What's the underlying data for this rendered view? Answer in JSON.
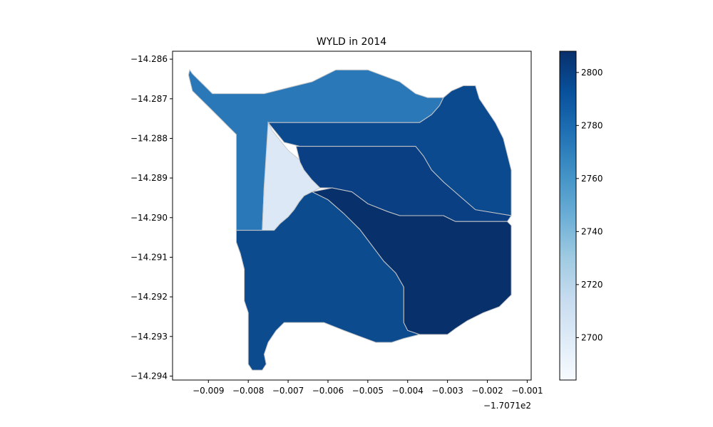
{
  "chart_data": {
    "type": "heatmap",
    "title": "WYLD in 2014",
    "xlabel": "",
    "ylabel": "",
    "x_offset_text": "−1.7071e2",
    "xlim": [
      -0.0099,
      -0.0009
    ],
    "ylim": [
      -14.2941,
      -14.2858
    ],
    "x_ticks": [
      -0.009,
      -0.008,
      -0.007,
      -0.006,
      -0.005,
      -0.004,
      -0.003,
      -0.002,
      -0.001
    ],
    "x_tick_labels": [
      "−0.009",
      "−0.008",
      "−0.007",
      "−0.006",
      "−0.005",
      "−0.004",
      "−0.003",
      "−0.002",
      "−0.001"
    ],
    "y_ticks": [
      -14.286,
      -14.287,
      -14.288,
      -14.289,
      -14.29,
      -14.291,
      -14.292,
      -14.293,
      -14.294
    ],
    "y_tick_labels": [
      "−14.286",
      "−14.287",
      "−14.288",
      "−14.289",
      "−14.290",
      "−14.291",
      "−14.292",
      "−14.293",
      "−14.294"
    ],
    "colorbar": {
      "colormap": "Blues",
      "range": [
        2684,
        2808
      ],
      "ticks": [
        2700,
        2720,
        2740,
        2760,
        2780,
        2800
      ],
      "tick_labels": [
        "2700",
        "2720",
        "2740",
        "2760",
        "2780",
        "2800"
      ]
    },
    "regions": [
      {
        "value": 2771,
        "color": "#2a78b8",
        "points": [
          [
            -0.00947,
            -14.28627
          ],
          [
            -0.0094,
            -14.28637
          ],
          [
            -0.0093,
            -14.28647
          ],
          [
            -0.0092,
            -14.28657
          ],
          [
            -0.0091,
            -14.28667
          ],
          [
            -0.009,
            -14.28677
          ],
          [
            -0.0089,
            -14.28687
          ],
          [
            -0.0076,
            -14.28687
          ],
          [
            -0.0072,
            -14.28677
          ],
          [
            -0.0068,
            -14.28667
          ],
          [
            -0.0064,
            -14.28657
          ],
          [
            -0.0061,
            -14.28642
          ],
          [
            -0.0058,
            -14.28627
          ],
          [
            -0.005,
            -14.28627
          ],
          [
            -0.0046,
            -14.28642
          ],
          [
            -0.0042,
            -14.28657
          ],
          [
            -0.004,
            -14.28672
          ],
          [
            -0.0038,
            -14.28687
          ],
          [
            -0.0035,
            -14.28697
          ],
          [
            -0.0031,
            -14.28697
          ],
          [
            -0.0032,
            -14.28717
          ],
          [
            -0.0034,
            -14.2874
          ],
          [
            -0.0037,
            -14.2876
          ],
          [
            -0.0041,
            -14.2876
          ],
          [
            -0.0075,
            -14.2876
          ],
          [
            -0.0075,
            -14.2886
          ],
          [
            -0.0076,
            -14.2892
          ],
          [
            -0.00765,
            -14.29032
          ],
          [
            -0.0083,
            -14.29032
          ],
          [
            -0.0083,
            -14.2879
          ],
          [
            -0.0085,
            -14.2877
          ],
          [
            -0.0087,
            -14.2875
          ],
          [
            -0.009,
            -14.2872
          ],
          [
            -0.0092,
            -14.287
          ],
          [
            -0.0094,
            -14.2868
          ],
          [
            -0.0095,
            -14.2864
          ]
        ]
      },
      {
        "value": 2692,
        "color": "#dce8f5",
        "points": [
          [
            -0.0075,
            -14.2876
          ],
          [
            -0.0076,
            -14.2892
          ],
          [
            -0.00765,
            -14.29032
          ],
          [
            -0.00735,
            -14.29032
          ],
          [
            -0.0072,
            -14.29015
          ],
          [
            -0.007,
            -14.28998
          ],
          [
            -0.00685,
            -14.2898
          ],
          [
            -0.00672,
            -14.2896
          ],
          [
            -0.0066,
            -14.28945
          ],
          [
            -0.0064,
            -14.28935
          ],
          [
            -0.0062,
            -14.28925
          ],
          [
            -0.0059,
            -14.28925
          ],
          [
            -0.0061,
            -14.28905
          ],
          [
            -0.0064,
            -14.2888
          ],
          [
            -0.0067,
            -14.28855
          ],
          [
            -0.007,
            -14.2883
          ],
          [
            -0.0072,
            -14.28805
          ],
          [
            -0.0074,
            -14.2878
          ]
        ]
      },
      {
        "value": 2795,
        "color": "#0b4a8f",
        "points": [
          [
            -0.0075,
            -14.2876
          ],
          [
            -0.0041,
            -14.2876
          ],
          [
            -0.0037,
            -14.2876
          ],
          [
            -0.0034,
            -14.2874
          ],
          [
            -0.0032,
            -14.28717
          ],
          [
            -0.0031,
            -14.28697
          ],
          [
            -0.0029,
            -14.2868
          ],
          [
            -0.0026,
            -14.28667
          ],
          [
            -0.0023,
            -14.28667
          ],
          [
            -0.0022,
            -14.287
          ],
          [
            -0.002,
            -14.2873
          ],
          [
            -0.0018,
            -14.2876
          ],
          [
            -0.0016,
            -14.288
          ],
          [
            -0.0015,
            -14.2884
          ],
          [
            -0.0014,
            -14.2888
          ],
          [
            -0.0014,
            -14.28995
          ],
          [
            -0.0023,
            -14.2898
          ],
          [
            -0.0027,
            -14.28945
          ],
          [
            -0.0031,
            -14.2891
          ],
          [
            -0.0034,
            -14.2888
          ],
          [
            -0.0036,
            -14.28845
          ],
          [
            -0.0038,
            -14.2882
          ],
          [
            -0.0067,
            -14.2882
          ],
          [
            -0.0071,
            -14.2881
          ]
        ]
      },
      {
        "value": 2803,
        "color": "#0a3f84",
        "points": [
          [
            -0.0068,
            -14.2882
          ],
          [
            -0.0038,
            -14.2882
          ],
          [
            -0.0036,
            -14.28845
          ],
          [
            -0.0034,
            -14.2888
          ],
          [
            -0.0031,
            -14.2891
          ],
          [
            -0.0027,
            -14.28945
          ],
          [
            -0.0023,
            -14.2898
          ],
          [
            -0.0014,
            -14.28995
          ],
          [
            -0.0015,
            -14.2901
          ],
          [
            -0.0028,
            -14.2901
          ],
          [
            -0.0031,
            -14.28995
          ],
          [
            -0.0042,
            -14.28995
          ],
          [
            -0.0045,
            -14.28985
          ],
          [
            -0.005,
            -14.28965
          ],
          [
            -0.0054,
            -14.28935
          ],
          [
            -0.0059,
            -14.28925
          ],
          [
            -0.0062,
            -14.28925
          ],
          [
            -0.0064,
            -14.28905
          ],
          [
            -0.0066,
            -14.2888
          ],
          [
            -0.0067,
            -14.2886
          ]
        ]
      },
      {
        "value": 2807,
        "color": "#08306b",
        "points": [
          [
            -0.0059,
            -14.28925
          ],
          [
            -0.0054,
            -14.28935
          ],
          [
            -0.005,
            -14.28965
          ],
          [
            -0.0045,
            -14.28985
          ],
          [
            -0.0042,
            -14.28995
          ],
          [
            -0.0031,
            -14.28995
          ],
          [
            -0.0028,
            -14.2901
          ],
          [
            -0.0015,
            -14.2901
          ],
          [
            -0.0014,
            -14.2902
          ],
          [
            -0.0014,
            -14.29195
          ],
          [
            -0.0017,
            -14.29225
          ],
          [
            -0.0021,
            -14.2924
          ],
          [
            -0.0025,
            -14.2926
          ],
          [
            -0.0028,
            -14.2928
          ],
          [
            -0.003,
            -14.29295
          ],
          [
            -0.0037,
            -14.29295
          ],
          [
            -0.004,
            -14.29285
          ],
          [
            -0.0041,
            -14.29265
          ],
          [
            -0.0041,
            -14.29175
          ],
          [
            -0.0043,
            -14.2914
          ],
          [
            -0.0046,
            -14.2911
          ],
          [
            -0.0049,
            -14.2907
          ],
          [
            -0.0052,
            -14.2903
          ],
          [
            -0.0056,
            -14.2899
          ],
          [
            -0.006,
            -14.28955
          ],
          [
            -0.0064,
            -14.28935
          ]
        ]
      },
      {
        "value": 2792,
        "color": "#0c4b8e",
        "points": [
          [
            -0.00765,
            -14.29032
          ],
          [
            -0.00735,
            -14.29032
          ],
          [
            -0.0072,
            -14.29015
          ],
          [
            -0.007,
            -14.28998
          ],
          [
            -0.00685,
            -14.2898
          ],
          [
            -0.00672,
            -14.2896
          ],
          [
            -0.0066,
            -14.28945
          ],
          [
            -0.0064,
            -14.28935
          ],
          [
            -0.006,
            -14.28955
          ],
          [
            -0.0056,
            -14.2899
          ],
          [
            -0.0052,
            -14.2903
          ],
          [
            -0.0049,
            -14.2907
          ],
          [
            -0.0046,
            -14.2911
          ],
          [
            -0.0043,
            -14.2914
          ],
          [
            -0.0041,
            -14.29175
          ],
          [
            -0.0041,
            -14.29265
          ],
          [
            -0.004,
            -14.29285
          ],
          [
            -0.0037,
            -14.29295
          ],
          [
            -0.0041,
            -14.29305
          ],
          [
            -0.0044,
            -14.29315
          ],
          [
            -0.0048,
            -14.29315
          ],
          [
            -0.0052,
            -14.293
          ],
          [
            -0.0056,
            -14.29285
          ],
          [
            -0.0061,
            -14.29265
          ],
          [
            -0.0071,
            -14.29265
          ],
          [
            -0.0073,
            -14.29285
          ],
          [
            -0.0075,
            -14.29315
          ],
          [
            -0.0076,
            -14.29345
          ],
          [
            -0.00755,
            -14.2937
          ],
          [
            -0.00765,
            -14.29385
          ],
          [
            -0.0079,
            -14.29385
          ],
          [
            -0.008,
            -14.2937
          ],
          [
            -0.008,
            -14.2924
          ],
          [
            -0.0081,
            -14.2921
          ],
          [
            -0.0081,
            -14.2913
          ],
          [
            -0.0082,
            -14.2909
          ],
          [
            -0.0083,
            -14.29062
          ],
          [
            -0.0083,
            -14.29032
          ]
        ]
      }
    ]
  }
}
